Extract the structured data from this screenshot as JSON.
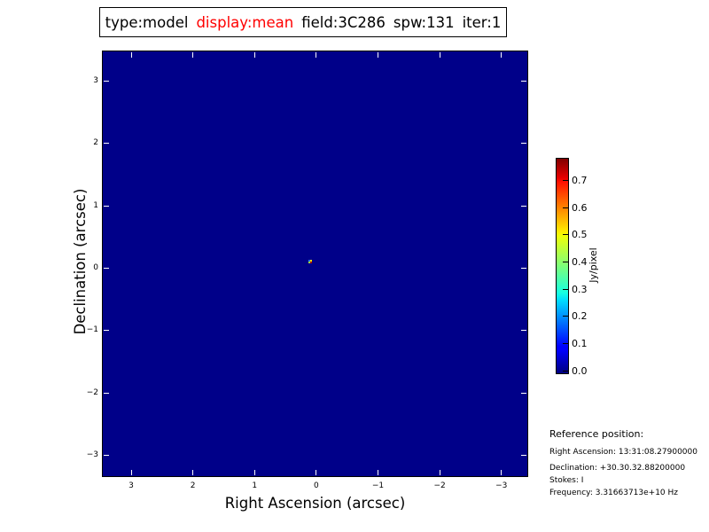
{
  "figure": {
    "background_color": "#ffffff",
    "kind": "CASA model image summary plot"
  },
  "title": {
    "segments": [
      {
        "text": "type:model",
        "color": "#000000"
      },
      {
        "text": "display:mean",
        "color": "#ff0000"
      },
      {
        "text": "field:3C286",
        "color": "#000000"
      },
      {
        "text": "spw:131",
        "color": "#000000"
      },
      {
        "text": "iter:1",
        "color": "#000000"
      }
    ]
  },
  "chart_data": {
    "type": "heatmap",
    "title": "type:model  display:mean  field:3C286  spw:131  iter:1",
    "xlabel": "Right Ascension (arcsec)",
    "ylabel": "Declination (arcsec)",
    "x_ticks": [
      3,
      2,
      1,
      0,
      -1,
      -2,
      -3
    ],
    "x_tick_labels": [
      "3",
      "2",
      "1",
      "0",
      "−1",
      "−2",
      "−3"
    ],
    "y_ticks": [
      3,
      2,
      1,
      0,
      -1,
      -2,
      -3
    ],
    "y_tick_labels": [
      "3",
      "2",
      "1",
      "0",
      "−1",
      "−2",
      "−3"
    ],
    "xlim": [
      3.46,
      -3.42
    ],
    "ylim": [
      -3.33,
      3.473
    ],
    "grid": false,
    "background_value": 0.0,
    "background_color": "#000089",
    "tick_color": "#ffffff",
    "colormap": "jet",
    "colorbar": {
      "label": "Jy/pixel",
      "vmin": -0.008,
      "vmax": 0.781,
      "ticks": [
        0.0,
        0.1,
        0.2,
        0.3,
        0.4,
        0.5,
        0.6,
        0.7
      ],
      "tick_labels": [
        "0.0",
        "0.1",
        "0.2",
        "0.3",
        "0.4",
        "0.5",
        "0.6",
        "0.7"
      ],
      "gradient_stops": [
        {
          "pos": 0.0,
          "color": "#000080"
        },
        {
          "pos": 0.11,
          "color": "#0000FF"
        },
        {
          "pos": 0.125,
          "color": "#0000FF"
        },
        {
          "pos": 0.34,
          "color": "#00DCFE"
        },
        {
          "pos": 0.375,
          "color": "#16FFE1"
        },
        {
          "pos": 0.5,
          "color": "#7DFF7A"
        },
        {
          "pos": 0.64,
          "color": "#EEFF09"
        },
        {
          "pos": 0.66,
          "color": "#FEED00"
        },
        {
          "pos": 0.89,
          "color": "#FF1300"
        },
        {
          "pos": 0.91,
          "color": "#E80000"
        },
        {
          "pos": 1.0,
          "color": "#800000"
        }
      ]
    },
    "source": {
      "description": "point source at image centre",
      "pixel_arcsec": 0.0295,
      "pixels": [
        {
          "ra": 0.115,
          "dec": 0.1235,
          "color": "#2678e6"
        },
        {
          "ra": 0.085,
          "dec": 0.1235,
          "color": "#efe400"
        },
        {
          "ra": 0.115,
          "dec": 0.094,
          "color": "#a6dc32"
        },
        {
          "ra": 0.083,
          "dec": 0.094,
          "color": "#a81206"
        }
      ]
    }
  },
  "reference": {
    "heading": "Reference position:",
    "lines": [
      "Right Ascension: 13:31:08.27900000",
      "Declination: +30.30.32.88200000",
      "Stokes: I",
      "Frequency: 3.31663713e+10 Hz"
    ]
  }
}
